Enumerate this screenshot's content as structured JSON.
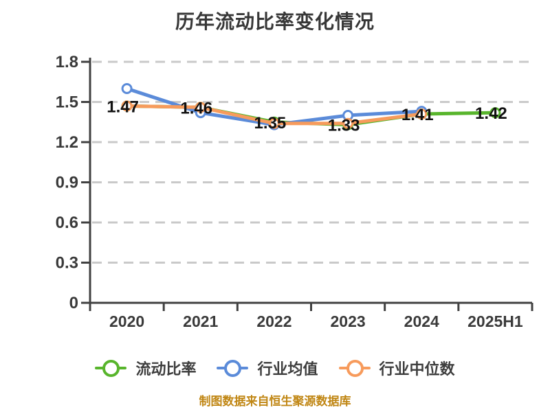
{
  "title": "历年流动比率变化情况",
  "footer": {
    "text": "制图数据来自恒生聚源数据库",
    "color": "#c08613"
  },
  "chart_data": {
    "type": "line",
    "categories": [
      "2020",
      "2021",
      "2022",
      "2023",
      "2024",
      "2025H1"
    ],
    "series": [
      {
        "name": "流动比率",
        "color": "#58b52c",
        "values": [
          1.47,
          1.46,
          1.35,
          1.33,
          1.41,
          1.42
        ],
        "point_labels": [
          "1.47",
          "1.46",
          "1.35",
          "1.33",
          "1.41",
          "1.42"
        ]
      },
      {
        "name": "行业均值",
        "color": "#5b8bd9",
        "values": [
          1.6,
          1.42,
          1.33,
          1.4,
          1.43,
          null
        ]
      },
      {
        "name": "行业中位数",
        "color": "#f79b5c",
        "values": [
          1.47,
          1.46,
          1.34,
          1.34,
          1.41,
          null
        ]
      }
    ],
    "ylim": [
      0,
      1.8
    ],
    "yticks": [
      0,
      0.3,
      0.6,
      0.9,
      1.2,
      1.5,
      1.8
    ],
    "grid": "horizontal-dashed",
    "grid_color": "#c9c9c9",
    "axis_color": "#414141",
    "label_color": "#3a3a3a",
    "data_label_color": "#111111",
    "legend_position": "bottom",
    "marker_style": "white-filled-circle"
  },
  "legend": {
    "items": [
      {
        "label": "流动比率",
        "color": "#58b52c"
      },
      {
        "label": "行业均值",
        "color": "#5b8bd9"
      },
      {
        "label": "行业中位数",
        "color": "#f79b5c"
      }
    ]
  }
}
